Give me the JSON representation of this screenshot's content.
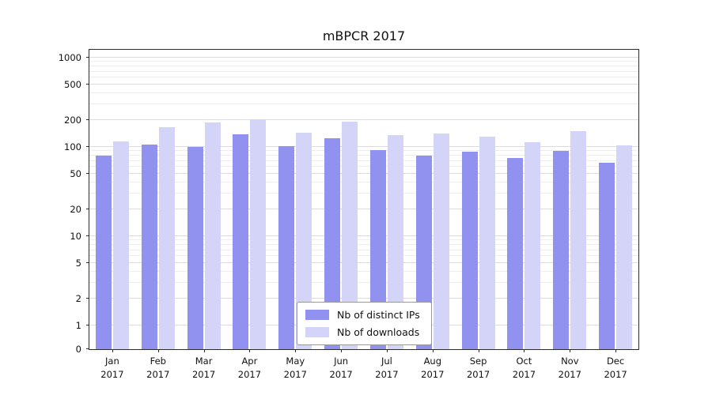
{
  "chart_data": {
    "type": "bar",
    "title": "mBPCR 2017",
    "yscale": "log",
    "yticks": [
      0,
      1,
      2,
      5,
      10,
      20,
      50,
      100,
      200,
      500,
      1000
    ],
    "minor_yticks": [
      3,
      4,
      6,
      7,
      8,
      9,
      30,
      40,
      60,
      70,
      80,
      90,
      300,
      400,
      600,
      700,
      800,
      900
    ],
    "ylim": [
      0,
      1000
    ],
    "grid": true,
    "legend_position": "lower center",
    "x_tick_months": [
      "Jan",
      "Feb",
      "Mar",
      "Apr",
      "May",
      "Jun",
      "Jul",
      "Aug",
      "Sep",
      "Oct",
      "Nov",
      "Dec"
    ],
    "x_tick_year": "2017",
    "series": [
      {
        "name": "Nb of distinct IPs",
        "color": "#9191ef",
        "values": [
          80,
          107,
          100,
          140,
          103,
          125,
          92,
          80,
          89,
          75,
          90,
          67
        ]
      },
      {
        "name": "Nb of downloads",
        "color": "#d4d4f8",
        "values": [
          115,
          165,
          188,
          205,
          145,
          193,
          135,
          142,
          130,
          113,
          152,
          104
        ]
      }
    ]
  }
}
